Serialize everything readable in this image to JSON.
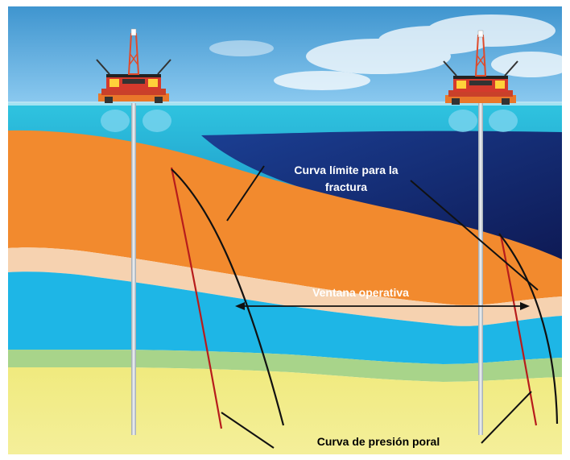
{
  "labels": {
    "fracture_line1": "Curva límite para la",
    "fracture_line2": "fractura",
    "window": "Ventana operativa",
    "pore": "Curva de presión poral"
  },
  "icons": {
    "platform_left": "offshore-platform-icon",
    "platform_right": "offshore-platform-icon"
  },
  "colors": {
    "sky_top": "#4aa3d6",
    "sea": "#22b5d6",
    "deep_water": "#15236b",
    "orange_layer": "#f28a2e",
    "sand_layer": "#f6d2b0",
    "blue_layer": "#1eb6e6",
    "green_layer": "#a8d48a",
    "yellow_layer": "#eee97c",
    "pore_curve": "#b71c1c",
    "fracture_curve": "#111111"
  }
}
